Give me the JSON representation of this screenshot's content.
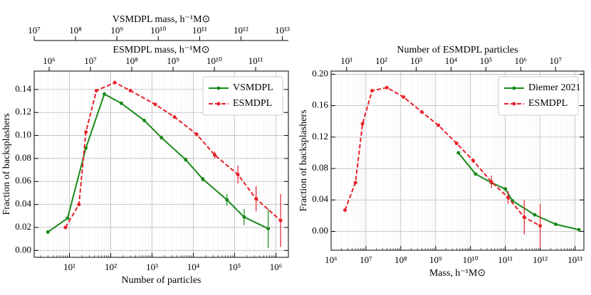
{
  "chart_data": [
    {
      "type": "line",
      "xlabel": "Number of particles",
      "ylabel": "Fraction of backsplashers",
      "xlog": true,
      "grid": true,
      "legend": "upper right",
      "xlim": [
        1.4,
        2000000
      ],
      "xticks": [
        {
          "value": 10,
          "label": "10¹"
        },
        {
          "value": 100,
          "label": "10²"
        },
        {
          "value": 1000,
          "label": "10³"
        },
        {
          "value": 10000,
          "label": "10⁴"
        },
        {
          "value": 100000,
          "label": "10⁵"
        },
        {
          "value": 1000000,
          "label": "10⁶"
        }
      ],
      "ylim": [
        -0.006,
        0.156
      ],
      "yticks": [
        {
          "value": 0,
          "label": "0.00"
        },
        {
          "value": 0.02,
          "label": "0.02"
        },
        {
          "value": 0.04,
          "label": "0.04"
        },
        {
          "value": 0.06,
          "label": "0.06"
        },
        {
          "value": 0.08,
          "label": "0.08"
        },
        {
          "value": 0.1,
          "label": "0.10"
        },
        {
          "value": 0.12,
          "label": "0.12"
        },
        {
          "value": 0.14,
          "label": "0.14"
        }
      ],
      "top_axes": [
        {
          "label": "ESMDPL mass, h⁻¹M⊙",
          "xlim": [
            434000,
            620000000000
          ],
          "xticks": [
            {
              "value": 1000000,
              "label": "10⁶"
            },
            {
              "value": 10000000,
              "label": "10⁷"
            },
            {
              "value": 100000000,
              "label": "10⁸"
            },
            {
              "value": 1000000000,
              "label": "10⁹"
            },
            {
              "value": 10000000000,
              "label": "10¹⁰"
            },
            {
              "value": 100000000000,
              "label": "10¹¹"
            }
          ]
        },
        {
          "label": "VSMDPL mass, h⁻¹M⊙",
          "xlim": [
            10000000,
            14000000000000
          ],
          "xticks": [
            {
              "value": 10000000,
              "label": "10⁷"
            },
            {
              "value": 100000000,
              "label": "10⁸"
            },
            {
              "value": 1000000000,
              "label": "10⁹"
            },
            {
              "value": 10000000000,
              "label": "10¹⁰"
            },
            {
              "value": 100000000000,
              "label": "10¹¹"
            },
            {
              "value": 1000000000000,
              "label": "10¹²"
            },
            {
              "value": 10000000000000,
              "label": "10¹³"
            }
          ]
        }
      ],
      "series": [
        {
          "name": "VSMDPL",
          "color": "#1a8a1a",
          "dashed": false,
          "x": [
            3,
            9,
            25,
            70,
            180,
            650,
            1700,
            6500,
            17000,
            65000,
            170000,
            650000
          ],
          "values": [
            0.016,
            0.028,
            0.089,
            0.136,
            0.128,
            0.113,
            0.098,
            0.079,
            0.062,
            0.044,
            0.029,
            0.019
          ],
          "errors": [
            0.001,
            0.001,
            0.001,
            0.001,
            0.001,
            0.001,
            0.001,
            0.002,
            0.002,
            0.005,
            0.007,
            0.017
          ]
        },
        {
          "name": "ESMDPL",
          "color": "#e8202a",
          "dashed": true,
          "x": [
            8,
            17,
            25,
            45,
            125,
            300,
            1200,
            3500,
            12000,
            33000,
            120000,
            330000,
            1300000
          ],
          "values": [
            0.02,
            0.04,
            0.103,
            0.139,
            0.146,
            0.139,
            0.127,
            0.116,
            0.101,
            0.083,
            0.066,
            0.045,
            0.026
          ],
          "errors": [
            0.001,
            0.001,
            0.001,
            0.001,
            0.001,
            0.001,
            0.001,
            0.001,
            0.002,
            0.003,
            0.008,
            0.011,
            0.023
          ]
        }
      ]
    },
    {
      "type": "line",
      "xlabel": "Mass, h⁻¹M⊙",
      "ylabel": "Fraction of backsplashers",
      "xlog": true,
      "grid": true,
      "legend": "upper right",
      "xlim": [
        1000000,
        18000000000000
      ],
      "xticks": [
        {
          "value": 1000000,
          "label": "10⁶"
        },
        {
          "value": 10000000,
          "label": "10⁷"
        },
        {
          "value": 100000000,
          "label": "10⁸"
        },
        {
          "value": 1000000000,
          "label": "10⁹"
        },
        {
          "value": 10000000000,
          "label": "10¹⁰"
        },
        {
          "value": 100000000000,
          "label": "10¹¹"
        },
        {
          "value": 1000000000000,
          "label": "10¹²"
        },
        {
          "value": 10000000000000,
          "label": "10¹³"
        }
      ],
      "ylim": [
        -0.024,
        0.204
      ],
      "yticks": [
        {
          "value": 0,
          "label": "0.00"
        },
        {
          "value": 0.04,
          "label": "0.04"
        },
        {
          "value": 0.08,
          "label": "0.08"
        },
        {
          "value": 0.12,
          "label": "0.12"
        },
        {
          "value": 0.16,
          "label": "0.16"
        },
        {
          "value": 0.2,
          "label": "0.20"
        }
      ],
      "top_axes": [
        {
          "label": "Number of ESMDPL particles",
          "xlim": [
            3.6,
            65000000
          ],
          "xticks": [
            {
              "value": 10,
              "label": "10¹"
            },
            {
              "value": 100,
              "label": "10²"
            },
            {
              "value": 1000,
              "label": "10³"
            },
            {
              "value": 10000,
              "label": "10⁴"
            },
            {
              "value": 100000,
              "label": "10⁵"
            },
            {
              "value": 1000000,
              "label": "10⁶"
            },
            {
              "value": 10000000,
              "label": "10⁷"
            }
          ]
        }
      ],
      "series": [
        {
          "name": "Diemer 2021",
          "color": "#1a8a1a",
          "dashed": false,
          "x": [
            4500000000,
            14000000000,
            40000000000,
            100000000000,
            160000000000,
            700000000000,
            2800000000000,
            13000000000000
          ],
          "values": [
            0.1,
            0.073,
            0.062,
            0.054,
            0.039,
            0.021,
            0.009,
            0.002
          ],
          "errors": [
            0.001,
            0.001,
            0.001,
            0.001,
            0.001,
            0.001,
            0.001,
            0.001
          ]
        },
        {
          "name": "ESMDPL",
          "color": "#e8202a",
          "dashed": true,
          "x": [
            2500000,
            5000000,
            8000000,
            15000000,
            40000000,
            120000000,
            400000000,
            1200000000,
            4000000000,
            12000000000,
            40000000000,
            120000000000,
            350000000000,
            1000000000000
          ],
          "values": [
            0.027,
            0.062,
            0.137,
            0.179,
            0.183,
            0.171,
            0.152,
            0.135,
            0.112,
            0.09,
            0.063,
            0.043,
            0.018,
            0.007
          ],
          "errors": [
            0.001,
            0.001,
            0.001,
            0.001,
            0.001,
            0.001,
            0.001,
            0.001,
            0.002,
            0.003,
            0.008,
            0.008,
            0.022,
            0.028
          ]
        }
      ]
    }
  ]
}
